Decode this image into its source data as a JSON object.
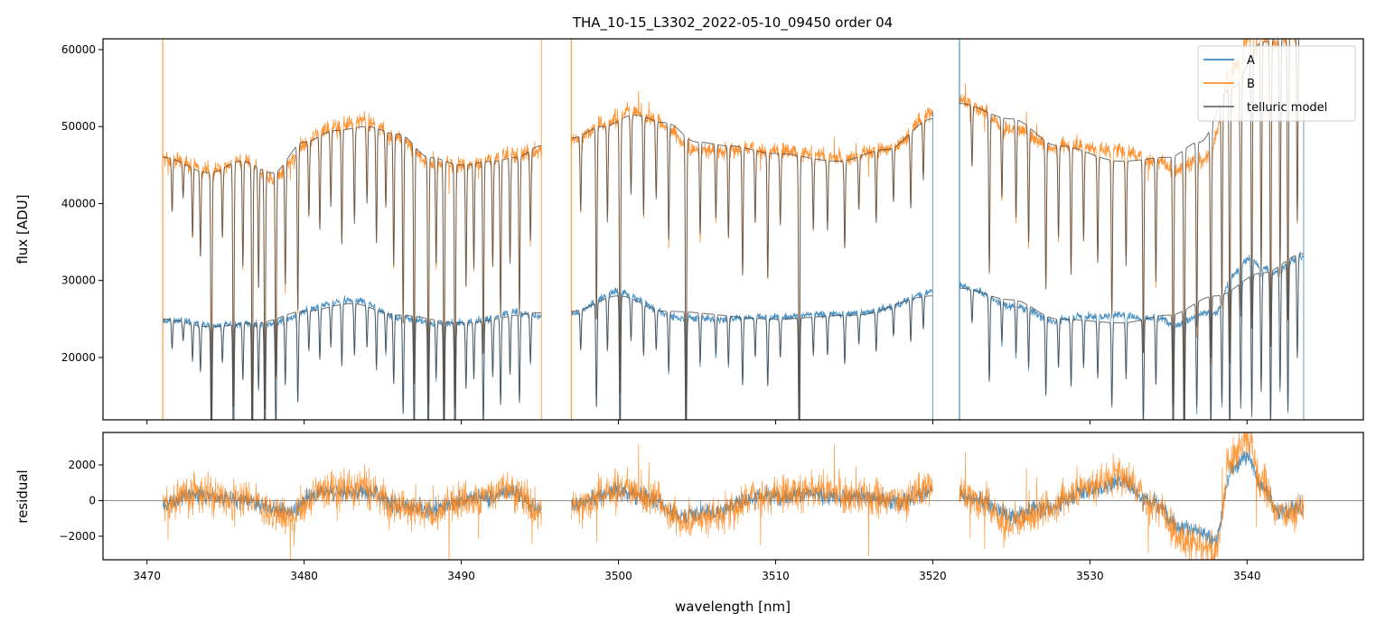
{
  "chart_data": {
    "type": "line",
    "title": "THA_10-15_L3302_2022-05-10_09450  order 04",
    "xlabel": "wavelength [nm]",
    "panels": [
      {
        "name": "flux",
        "ylabel": "flux [ADU]",
        "ylim": [
          11900,
          61400
        ],
        "yticks": [
          20000,
          30000,
          40000,
          50000,
          60000
        ]
      },
      {
        "name": "residual",
        "ylabel": "residual",
        "ylim": [
          -3320,
          3820
        ],
        "yticks": [
          -2000,
          0,
          2000
        ],
        "zero_line": true
      }
    ],
    "xlim": [
      3467.2,
      3547.4
    ],
    "xticks": [
      3470,
      3480,
      3490,
      3500,
      3510,
      3520,
      3530,
      3540
    ],
    "legend": {
      "placement": "top-right",
      "entries": [
        "A",
        "B",
        "telluric model"
      ]
    },
    "colors": {
      "A": "#1f77b4",
      "B": "#ff7f0e",
      "model": "#404040"
    },
    "segments": [
      [
        3471.0,
        3495.1
      ],
      [
        3497.0,
        3520.0
      ],
      [
        3521.7,
        3543.6
      ]
    ],
    "continuum_B": [
      [
        3471,
        46000
      ],
      [
        3474,
        44000
      ],
      [
        3476,
        45500
      ],
      [
        3478,
        44000
      ],
      [
        3480,
        48000
      ],
      [
        3482,
        49500
      ],
      [
        3484,
        50000
      ],
      [
        3486,
        49000
      ],
      [
        3488,
        46000
      ],
      [
        3490,
        45000
      ],
      [
        3492,
        45500
      ],
      [
        3493.5,
        46000
      ],
      [
        3495.1,
        47500
      ],
      [
        3497,
        48500
      ],
      [
        3499,
        50000
      ],
      [
        3501,
        51500
      ],
      [
        3503,
        50500
      ],
      [
        3505,
        48000
      ],
      [
        3507,
        47500
      ],
      [
        3510,
        46500
      ],
      [
        3514,
        45500
      ],
      [
        3517,
        47000
      ],
      [
        3520,
        51000
      ],
      [
        3521.7,
        53000
      ],
      [
        3525,
        51000
      ],
      [
        3528,
        47500
      ],
      [
        3532,
        45500
      ],
      [
        3535,
        46000
      ],
      [
        3537,
        48000
      ],
      [
        3539,
        55000
      ],
      [
        3541,
        61000
      ],
      [
        3543.6,
        63000
      ]
    ],
    "continuum_A": [
      [
        3471,
        25000
      ],
      [
        3474,
        24000
      ],
      [
        3477,
        24500
      ],
      [
        3480,
        26000
      ],
      [
        3483,
        27000
      ],
      [
        3486,
        25500
      ],
      [
        3490,
        24500
      ],
      [
        3495.1,
        25800
      ],
      [
        3497,
        26000
      ],
      [
        3500,
        28000
      ],
      [
        3503,
        26000
      ],
      [
        3510,
        25000
      ],
      [
        3515,
        25500
      ],
      [
        3520,
        28000
      ],
      [
        3521.7,
        29000
      ],
      [
        3525,
        27500
      ],
      [
        3528,
        25000
      ],
      [
        3532,
        24500
      ],
      [
        3535,
        25500
      ],
      [
        3538,
        28000
      ],
      [
        3541,
        31000
      ],
      [
        3543.6,
        33500
      ]
    ],
    "absorption_lines": [
      [
        3471.6,
        0.15
      ],
      [
        3472.3,
        0.1
      ],
      [
        3472.9,
        0.2
      ],
      [
        3473.4,
        0.25
      ],
      [
        3474.1,
        0.75
      ],
      [
        3474.8,
        0.2
      ],
      [
        3475.5,
        0.7
      ],
      [
        3476.1,
        0.3
      ],
      [
        3476.7,
        0.75
      ],
      [
        3477.1,
        0.35
      ],
      [
        3477.5,
        0.7
      ],
      [
        3478.2,
        0.6
      ],
      [
        3478.8,
        0.35
      ],
      [
        3479.6,
        0.45
      ],
      [
        3480.3,
        0.2
      ],
      [
        3481.0,
        0.25
      ],
      [
        3481.7,
        0.2
      ],
      [
        3482.4,
        0.3
      ],
      [
        3483.2,
        0.25
      ],
      [
        3484.0,
        0.2
      ],
      [
        3484.6,
        0.3
      ],
      [
        3485.2,
        0.2
      ],
      [
        3485.7,
        0.35
      ],
      [
        3486.3,
        0.5
      ],
      [
        3487.0,
        0.65
      ],
      [
        3487.9,
        0.7
      ],
      [
        3488.4,
        0.3
      ],
      [
        3488.9,
        0.75
      ],
      [
        3489.6,
        0.7
      ],
      [
        3490.3,
        0.35
      ],
      [
        3490.8,
        0.3
      ],
      [
        3491.4,
        0.55
      ],
      [
        3492.0,
        0.3
      ],
      [
        3492.5,
        0.45
      ],
      [
        3493.1,
        0.3
      ],
      [
        3493.7,
        0.45
      ],
      [
        3494.4,
        0.25
      ],
      [
        3497.6,
        0.2
      ],
      [
        3498.6,
        0.5
      ],
      [
        3499.3,
        0.25
      ],
      [
        3500.1,
        0.7
      ],
      [
        3500.8,
        0.2
      ],
      [
        3501.6,
        0.25
      ],
      [
        3502.4,
        0.2
      ],
      [
        3503.2,
        0.3
      ],
      [
        3504.3,
        0.75
      ],
      [
        3505.2,
        0.25
      ],
      [
        3506.2,
        0.2
      ],
      [
        3507.0,
        0.25
      ],
      [
        3507.9,
        0.35
      ],
      [
        3508.7,
        0.2
      ],
      [
        3509.5,
        0.35
      ],
      [
        3510.3,
        0.2
      ],
      [
        3511.5,
        0.75
      ],
      [
        3512.4,
        0.2
      ],
      [
        3513.3,
        0.2
      ],
      [
        3514.4,
        0.25
      ],
      [
        3515.3,
        0.15
      ],
      [
        3516.4,
        0.2
      ],
      [
        3517.5,
        0.15
      ],
      [
        3518.6,
        0.2
      ],
      [
        3519.4,
        0.15
      ],
      [
        3522.5,
        0.15
      ],
      [
        3523.6,
        0.4
      ],
      [
        3524.4,
        0.2
      ],
      [
        3525.3,
        0.25
      ],
      [
        3526.1,
        0.3
      ],
      [
        3527.2,
        0.4
      ],
      [
        3528.0,
        0.25
      ],
      [
        3528.8,
        0.35
      ],
      [
        3529.6,
        0.25
      ],
      [
        3530.5,
        0.3
      ],
      [
        3531.4,
        0.45
      ],
      [
        3532.3,
        0.3
      ],
      [
        3533.4,
        0.55
      ],
      [
        3534.2,
        0.35
      ],
      [
        3535.3,
        0.7
      ],
      [
        3536.0,
        0.75
      ],
      [
        3536.8,
        0.5
      ],
      [
        3537.7,
        0.6
      ],
      [
        3538.4,
        0.5
      ],
      [
        3538.9,
        0.65
      ],
      [
        3539.6,
        0.55
      ],
      [
        3540.3,
        0.6
      ],
      [
        3540.9,
        0.5
      ],
      [
        3541.5,
        0.65
      ],
      [
        3542.1,
        0.5
      ],
      [
        3542.6,
        0.6
      ],
      [
        3543.2,
        0.4
      ]
    ],
    "residual_trend_B": [
      [
        3471,
        -300
      ],
      [
        3473,
        500
      ],
      [
        3476,
        0
      ],
      [
        3479,
        -900
      ],
      [
        3481,
        600
      ],
      [
        3484,
        700
      ],
      [
        3486,
        -300
      ],
      [
        3488,
        -800
      ],
      [
        3490,
        0
      ],
      [
        3492,
        300
      ],
      [
        3493,
        800
      ],
      [
        3495.1,
        -700
      ],
      [
        3497,
        -300
      ],
      [
        3500,
        700
      ],
      [
        3502,
        200
      ],
      [
        3504,
        -1200
      ],
      [
        3506,
        -900
      ],
      [
        3509,
        300
      ],
      [
        3512,
        500
      ],
      [
        3515,
        300
      ],
      [
        3518,
        0
      ],
      [
        3520,
        800
      ],
      [
        3521.7,
        500
      ],
      [
        3523,
        0
      ],
      [
        3525,
        -1300
      ],
      [
        3527,
        -600
      ],
      [
        3530,
        800
      ],
      [
        3532,
        1500
      ],
      [
        3534,
        -200
      ],
      [
        3536,
        -2200
      ],
      [
        3538,
        -3000
      ],
      [
        3539,
        2500
      ],
      [
        3540,
        3500
      ],
      [
        3541,
        1000
      ],
      [
        3542,
        -800
      ],
      [
        3543.6,
        -500
      ]
    ],
    "residual_scale_A": 0.7
  }
}
